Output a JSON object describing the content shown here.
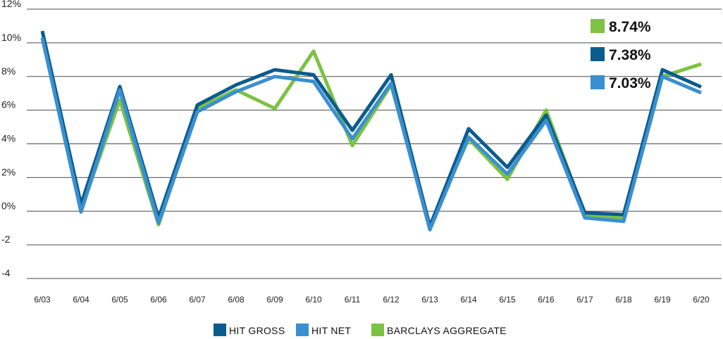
{
  "chart_data": {
    "type": "line",
    "categories": [
      "6/03",
      "6/04",
      "6/05",
      "6/06",
      "6/07",
      "6/08",
      "6/09",
      "6/10",
      "6/11",
      "6/12",
      "6/13",
      "6/14",
      "6/15",
      "6/16",
      "6/17",
      "6/18",
      "6/19",
      "6/20"
    ],
    "ylim": [
      -4,
      12
    ],
    "yticks": [
      {
        "value": 12,
        "label": "12%"
      },
      {
        "value": 10,
        "label": "10%"
      },
      {
        "value": 8,
        "label": "8%"
      },
      {
        "value": 6,
        "label": "6%"
      },
      {
        "value": 4,
        "label": "4%"
      },
      {
        "value": 2,
        "label": "2%"
      },
      {
        "value": 0,
        "label": "0%"
      },
      {
        "value": -2,
        "label": "-2"
      },
      {
        "value": -4,
        "label": "-4"
      }
    ],
    "grid": true,
    "legend_position": "bottom",
    "series": [
      {
        "name": "BARCLAYS AGGREGATE",
        "color": "#7dc242",
        "values": [
          10.3,
          0.1,
          6.6,
          -0.8,
          6.1,
          7.2,
          6.1,
          9.5,
          3.9,
          7.5,
          -0.9,
          4.3,
          1.9,
          6.0,
          -0.2,
          -0.4,
          8.0,
          8.74
        ]
      },
      {
        "name": "HIT GROSS",
        "color": "#0b5c8c",
        "values": [
          10.7,
          0.4,
          7.4,
          -0.4,
          6.3,
          7.5,
          8.4,
          8.1,
          4.8,
          8.1,
          -0.9,
          4.9,
          2.6,
          5.7,
          -0.1,
          -0.2,
          8.4,
          7.38
        ]
      },
      {
        "name": "HIT NET",
        "color": "#3a8fd0",
        "values": [
          10.3,
          -0.05,
          7.2,
          -0.7,
          5.9,
          7.1,
          8.0,
          7.7,
          4.3,
          7.6,
          -1.1,
          4.4,
          2.2,
          5.4,
          -0.4,
          -0.6,
          8.0,
          7.03
        ]
      }
    ],
    "legend_order": [
      "HIT GROSS",
      "HIT NET",
      "BARCLAYS AGGREGATE"
    ],
    "callouts": [
      {
        "series": "BARCLAYS AGGREGATE",
        "text": "8.74%",
        "color": "#7dc242"
      },
      {
        "series": "HIT GROSS",
        "text": "7.38%",
        "color": "#0b5c8c"
      },
      {
        "series": "HIT NET",
        "text": "7.03%",
        "color": "#3a8fd0"
      }
    ]
  }
}
